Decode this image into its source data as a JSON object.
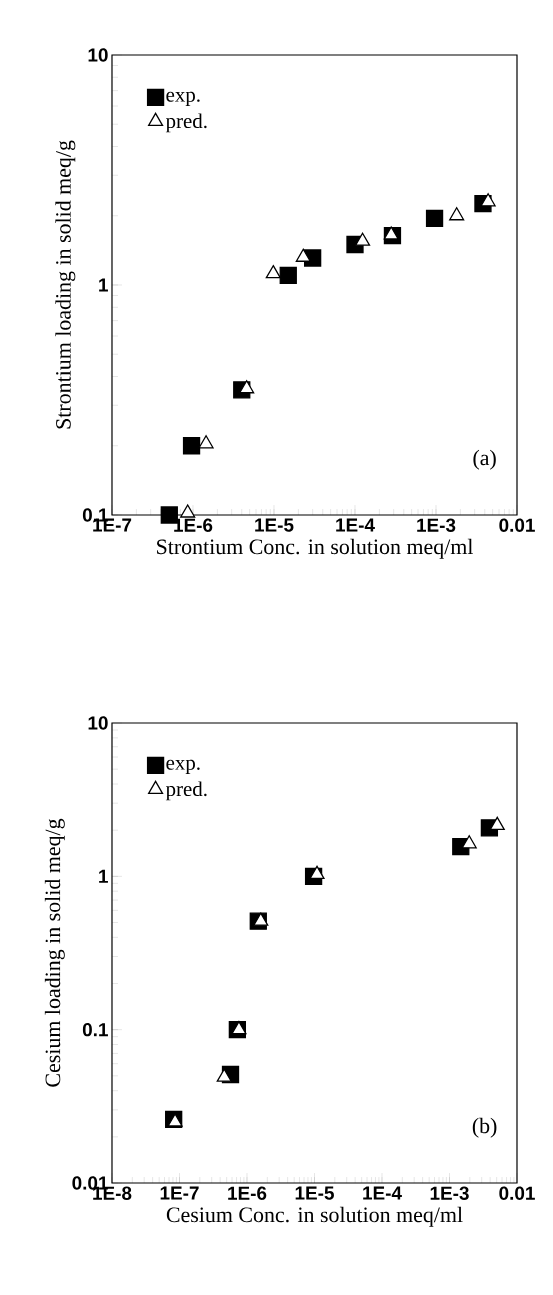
{
  "chart_data": [
    {
      "type": "scatter",
      "xlabel": "Strontium Conc. in solution meq/ml",
      "ylabel": "Strontium loading in solid meq/g",
      "log": "xy",
      "legend": "top left",
      "annotations": [
        "(a)"
      ],
      "xlim": [
        1e-07,
        0.01
      ],
      "ylim": [
        0.1,
        10
      ],
      "xticks": [
        {
          "value": 1e-07,
          "label": "1E-7"
        },
        {
          "value": 1e-06,
          "label": "1E-6"
        },
        {
          "value": 1e-05,
          "label": "1E-5"
        },
        {
          "value": 0.0001,
          "label": "1E-4"
        },
        {
          "value": 0.001,
          "label": "1E-3"
        },
        0.01
      ],
      "yticks": [
        0.1,
        1,
        10
      ],
      "series": [
        {
          "name": "exp.",
          "color": "#000000",
          "marker": "square",
          "x": [
            5.1e-07,
            9.6e-07,
            4e-06,
            1.5e-05,
            3e-05,
            0.0001,
            0.00029,
            0.00096,
            0.0038
          ],
          "values": [
            0.1,
            0.2,
            0.35,
            1.1,
            1.31,
            1.5,
            1.64,
            1.95,
            2.26
          ]
        },
        {
          "name": "pred.",
          "color": "#000000",
          "marker": "triangle",
          "x": [
            8.6e-07,
            1.45e-06,
            4.6e-06,
            9.8e-06,
            2.3e-05,
            0.000124,
            0.00028,
            0.0018,
            0.0044
          ],
          "values": [
            0.102,
            0.204,
            0.354,
            1.12,
            1.32,
            1.55,
            1.65,
            2.0,
            2.3
          ]
        }
      ]
    },
    {
      "type": "scatter",
      "xlabel": "Cesium Conc. in solution meq/ml",
      "ylabel": "Cesium loading in solid meq/g",
      "log": "xy",
      "legend": "top left",
      "annotations": [
        "(b)"
      ],
      "xlim": [
        1e-08,
        0.01
      ],
      "ylim": [
        0.01,
        10
      ],
      "xticks": [
        {
          "value": 1e-08,
          "label": "1E-8"
        },
        {
          "value": 1e-07,
          "label": "1E-7"
        },
        {
          "value": 1e-06,
          "label": "1E-6"
        },
        {
          "value": 1e-05,
          "label": "1E-5"
        },
        {
          "value": 0.0001,
          "label": "1E-4"
        },
        {
          "value": 0.001,
          "label": "1E-3"
        },
        0.01
      ],
      "yticks": [
        0.01,
        0.1,
        1,
        10
      ],
      "series": [
        {
          "name": "exp.",
          "color": "#000000",
          "marker": "square",
          "x": [
            8.2e-08,
            5.7e-07,
            7.2e-07,
            1.47e-06,
            9.7e-06,
            0.00147,
            0.0039
          ],
          "values": [
            0.026,
            0.051,
            0.1,
            0.51,
            1.0,
            1.56,
            2.07
          ]
        },
        {
          "name": "pred.",
          "color": "#000000",
          "marker": "triangle",
          "x": [
            8.6e-08,
            4.6e-07,
            7.6e-07,
            1.6e-06,
            1.09e-05,
            0.00196,
            0.0051
          ],
          "values": [
            0.025,
            0.049,
            0.1,
            0.51,
            1.03,
            1.63,
            2.15
          ]
        }
      ]
    }
  ]
}
